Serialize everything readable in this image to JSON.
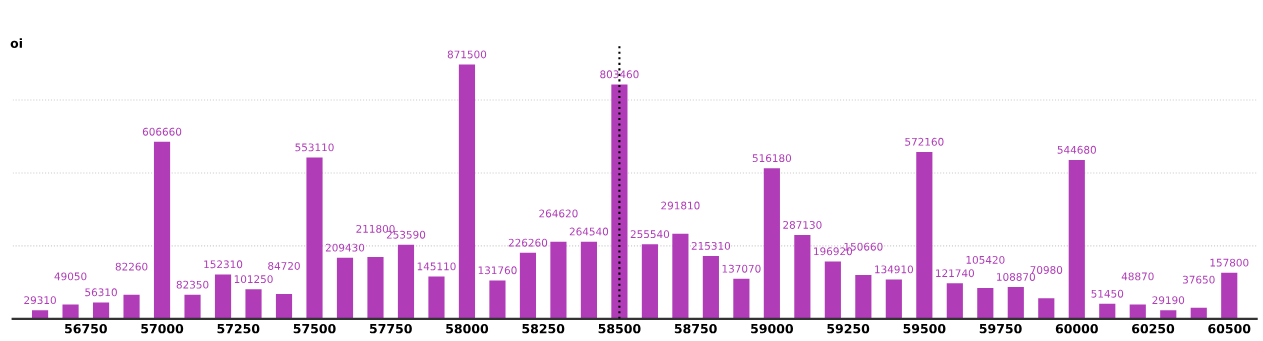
{
  "chart_data": {
    "type": "bar",
    "ylabel": "oi",
    "x": [
      56600,
      56700,
      56800,
      56900,
      57000,
      57100,
      57200,
      57300,
      57400,
      57500,
      57600,
      57700,
      57800,
      57900,
      58000,
      58100,
      58200,
      58300,
      58400,
      58500,
      58600,
      58700,
      58800,
      58900,
      59000,
      59100,
      59200,
      59300,
      59400,
      59500,
      59600,
      59700,
      59800,
      59900,
      60000,
      60100,
      60200,
      60300,
      60400,
      60500
    ],
    "series": [
      {
        "color": "#b03cb8",
        "values": [
          29310,
          49050,
          56310,
          82260,
          606660,
          82350,
          152310,
          101250,
          84720,
          553110,
          209430,
          211800,
          253590,
          145110,
          871500,
          131760,
          226260,
          264620,
          264540,
          803460,
          255540,
          291810,
          215310,
          137070,
          516180,
          287130,
          196920,
          150660,
          134910,
          572160,
          121740,
          105420,
          108870,
          70980,
          544680,
          51450,
          48870,
          29190,
          37650,
          157800
        ]
      }
    ],
    "xlim": [
      56510,
      60590
    ],
    "xticks": [
      56750,
      57000,
      57250,
      57500,
      57750,
      58000,
      58250,
      58500,
      58750,
      59000,
      59250,
      59500,
      59750,
      60000,
      60250,
      60500
    ],
    "ylim": [
      0,
      935000
    ],
    "yticks": [
      {
        "value": 250000,
        "label": null
      },
      {
        "value": 500000,
        "label": null
      },
      {
        "value": 750000,
        "label": null
      }
    ],
    "tick_labels": "x",
    "grid": "y",
    "data_labels": true,
    "ref_lines": [
      {
        "axis": "x",
        "value": 58500,
        "color": "#000000",
        "line_style": "dotted"
      }
    ]
  }
}
